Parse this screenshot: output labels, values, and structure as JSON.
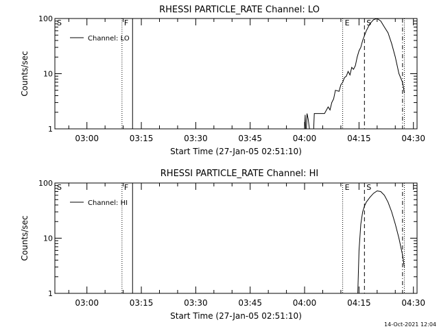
{
  "timestamp": "14-Oct-2021 12:04",
  "chart_data": [
    {
      "type": "line",
      "title": "RHESSI PARTICLE_RATE Channel: LO",
      "xlabel": "Start Time (27-Jan-05 02:51:10)",
      "ylabel": "Counts/sec",
      "y_scale": "log",
      "ylim": [
        1,
        100
      ],
      "xlim": [
        "02:51:10",
        "04:31:00"
      ],
      "x_ticks": [
        "03:00",
        "03:15",
        "03:30",
        "03:45",
        "04:00",
        "04:15",
        "04:30"
      ],
      "y_ticks": [
        "1",
        "10",
        "100"
      ],
      "legend": {
        "position": "top-left",
        "label": "Channel: LO"
      },
      "markers": [
        {
          "label": "S",
          "time": "02:51:10",
          "style": "solid"
        },
        {
          "label": "F",
          "time": "03:09:40",
          "style": "dotted"
        },
        {
          "label": "",
          "time": "03:12:35",
          "style": "solid"
        },
        {
          "label": "E",
          "time": "04:10:30",
          "style": "dotted"
        },
        {
          "label": "S",
          "time": "04:16:30",
          "style": "dashed"
        },
        {
          "label": "",
          "time": "04:27:00",
          "style": "dashdot"
        },
        {
          "label": "",
          "time": "04:27:30",
          "style": "dotted"
        }
      ],
      "series": [
        {
          "name": "Channel: LO",
          "x": [
            "04:00:00",
            "04:00:10",
            "04:00:15",
            "04:00:30",
            "04:00:40",
            "04:01:00",
            "04:01:20",
            "04:01:40",
            "04:02:00",
            "04:02:30",
            "04:02:40",
            "04:04:00",
            "04:05:30",
            "04:06:30",
            "04:07:00",
            "04:07:30",
            "04:08:00",
            "04:08:30",
            "04:09:30",
            "04:10:00",
            "04:10:30",
            "04:11:00",
            "04:11:30",
            "04:12:00",
            "04:12:30",
            "04:13:00",
            "04:13:30",
            "04:14:00",
            "04:14:30",
            "04:15:00",
            "04:15:30",
            "04:16:00",
            "04:17:00",
            "04:18:00",
            "04:19:00",
            "04:20:00",
            "04:21:00",
            "04:22:00",
            "04:23:00",
            "04:24:00",
            "04:25:00",
            "04:26:00",
            "04:27:00",
            "04:27:30"
          ],
          "y": [
            1,
            1.8,
            1,
            1,
            1.9,
            1.5,
            1,
            1,
            1,
            1,
            1.9,
            1.9,
            1.9,
            2.5,
            2.2,
            3.0,
            3.5,
            5.0,
            4.8,
            6.3,
            7.0,
            8.5,
            9.0,
            11.0,
            9.5,
            13.0,
            12.0,
            14.0,
            20.0,
            26.0,
            30.0,
            40.0,
            60.0,
            80.0,
            95.0,
            100.0,
            90.0,
            70.0,
            55.0,
            35.0,
            20.0,
            10.0,
            7.0,
            4.5
          ]
        }
      ]
    },
    {
      "type": "line",
      "title": "RHESSI PARTICLE_RATE Channel: HI",
      "xlabel": "Start Time (27-Jan-05 02:51:10)",
      "ylabel": "Counts/sec",
      "y_scale": "log",
      "ylim": [
        1,
        100
      ],
      "xlim": [
        "02:51:10",
        "04:31:00"
      ],
      "x_ticks": [
        "03:00",
        "03:15",
        "03:30",
        "03:45",
        "04:00",
        "04:15",
        "04:30"
      ],
      "y_ticks": [
        "1",
        "10",
        "100"
      ],
      "legend": {
        "position": "top-left",
        "label": "Channel: HI"
      },
      "markers": [
        {
          "label": "S",
          "time": "02:51:10",
          "style": "solid"
        },
        {
          "label": "F",
          "time": "03:09:40",
          "style": "dotted"
        },
        {
          "label": "",
          "time": "03:12:35",
          "style": "solid"
        },
        {
          "label": "E",
          "time": "04:10:30",
          "style": "dotted"
        },
        {
          "label": "S",
          "time": "04:16:30",
          "style": "dashed"
        },
        {
          "label": "",
          "time": "04:27:00",
          "style": "dashdot"
        },
        {
          "label": "",
          "time": "04:27:30",
          "style": "dotted"
        }
      ],
      "series": [
        {
          "name": "Channel: HI",
          "x": [
            "04:14:40",
            "04:15:00",
            "04:15:30",
            "04:16:00",
            "04:16:30",
            "04:17:00",
            "04:18:00",
            "04:19:00",
            "04:20:00",
            "04:21:00",
            "04:22:00",
            "04:23:00",
            "04:24:00",
            "04:25:00",
            "04:26:00",
            "04:27:00",
            "04:27:30"
          ],
          "y": [
            1,
            6.0,
            18.0,
            30.0,
            38.0,
            45.0,
            55.0,
            65.0,
            72.0,
            70.0,
            60.0,
            45.0,
            30.0,
            18.0,
            10.0,
            5.0,
            3.0
          ]
        }
      ]
    }
  ]
}
